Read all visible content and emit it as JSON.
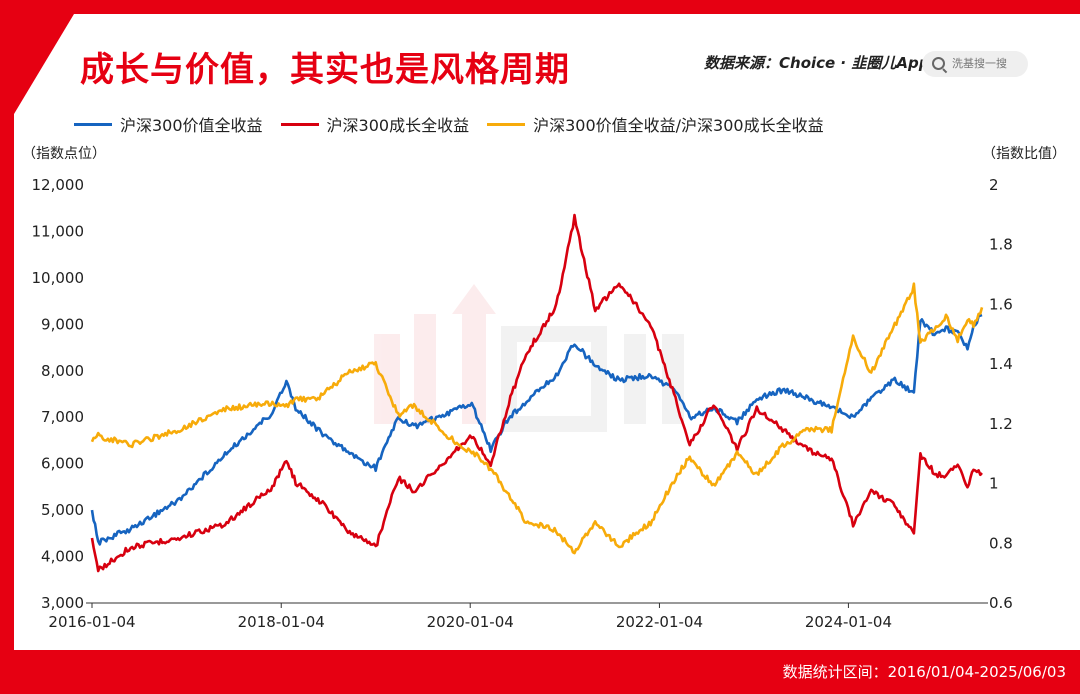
{
  "header": {
    "title": "成长与价值，其实也是风格周期",
    "source": "数据来源：Choice · 韭圈儿App",
    "search_placeholder": "洗基搜一搜"
  },
  "footer": {
    "range": "数据统计区间：2016/01/04-2025/06/03"
  },
  "watermark_icon": "jiuquaner-logo-watermark",
  "colors": {
    "value": "#1664c0",
    "growth": "#d7000f",
    "ratio": "#f7ab0a",
    "brand": "#e60012"
  },
  "chart_data": {
    "type": "line",
    "title": "成长与价值，其实也是风格周期",
    "y_left_unit": "（指数点位）",
    "y_right_unit": "（指数比值）",
    "y_left_ticks": [
      "3,000",
      "4,000",
      "5,000",
      "6,000",
      "7,000",
      "8,000",
      "9,000",
      "10,000",
      "11,000",
      "12,000"
    ],
    "y_right_ticks": [
      "0.6",
      "0.8",
      "1",
      "1.2",
      "1.4",
      "1.6",
      "1.8",
      "2"
    ],
    "x_ticks": [
      "2016-01-04",
      "2018-01-04",
      "2020-01-04",
      "2022-01-04",
      "2024-01-04"
    ],
    "ylim_left": [
      3000,
      12000
    ],
    "ylim_right": [
      0.6,
      2.0
    ],
    "xlim": [
      "2016-01-04",
      "2025-06-03"
    ],
    "legend_position": "top-left",
    "grid": false,
    "series": [
      {
        "name": "沪深300价值全收益",
        "axis": "left",
        "color": "#1664c0",
        "x": [
          "2016-01-04",
          "2016-01-28",
          "2016-06-01",
          "2016-12-01",
          "2017-06-01",
          "2017-12-01",
          "2018-01-24",
          "2018-03-01",
          "2018-06-01",
          "2018-10-01",
          "2019-01-04",
          "2019-04-01",
          "2019-06-01",
          "2019-09-01",
          "2019-12-01",
          "2020-01-10",
          "2020-03-23",
          "2020-06-01",
          "2020-08-01",
          "2020-12-01",
          "2021-02-10",
          "2021-05-01",
          "2021-08-01",
          "2021-12-01",
          "2022-03-01",
          "2022-05-01",
          "2022-08-01",
          "2022-10-31",
          "2023-01-15",
          "2023-05-01",
          "2023-08-01",
          "2023-10-31",
          "2024-01-22",
          "2024-04-01",
          "2024-07-01",
          "2024-09-13",
          "2024-10-08",
          "2024-12-01",
          "2025-01-15",
          "2025-03-01",
          "2025-04-08",
          "2025-05-01",
          "2025-06-03"
        ],
        "y": [
          5000,
          4300,
          4600,
          5200,
          6200,
          7100,
          7800,
          7200,
          6700,
          6200,
          5900,
          7000,
          6800,
          7000,
          7200,
          7300,
          6300,
          7000,
          7300,
          7900,
          8600,
          8100,
          7800,
          7900,
          7600,
          7000,
          7200,
          6900,
          7400,
          7600,
          7400,
          7200,
          7000,
          7400,
          7800,
          7500,
          9100,
          8800,
          8900,
          8800,
          8500,
          9000,
          9200
        ]
      },
      {
        "name": "沪深300成长全收益",
        "axis": "left",
        "color": "#d7000f",
        "x": [
          "2016-01-04",
          "2016-01-28",
          "2016-06-01",
          "2016-12-01",
          "2017-06-01",
          "2017-12-01",
          "2018-01-24",
          "2018-03-01",
          "2018-06-01",
          "2018-10-01",
          "2019-01-04",
          "2019-04-01",
          "2019-06-01",
          "2019-09-01",
          "2019-12-01",
          "2020-01-10",
          "2020-03-23",
          "2020-06-01",
          "2020-08-01",
          "2020-12-01",
          "2021-02-10",
          "2021-05-01",
          "2021-08-01",
          "2021-12-01",
          "2022-03-01",
          "2022-05-01",
          "2022-08-01",
          "2022-10-31",
          "2023-01-15",
          "2023-05-01",
          "2023-08-01",
          "2023-10-31",
          "2024-01-22",
          "2024-04-01",
          "2024-07-01",
          "2024-09-13",
          "2024-10-08",
          "2024-12-01",
          "2025-01-15",
          "2025-03-01",
          "2025-04-08",
          "2025-05-01",
          "2025-06-03"
        ],
        "y": [
          4400,
          3700,
          4200,
          4400,
          4700,
          5500,
          6100,
          5600,
          5200,
          4500,
          4200,
          5700,
          5400,
          5900,
          6400,
          6600,
          6000,
          7300,
          8300,
          9400,
          11300,
          9300,
          9900,
          9000,
          7500,
          6400,
          7300,
          6300,
          7200,
          6700,
          6300,
          6100,
          4700,
          5400,
          5100,
          4500,
          6200,
          5800,
          5700,
          6000,
          5500,
          5900,
          5800
        ]
      },
      {
        "name": "沪深300价值全收益/沪深300成长全收益",
        "axis": "right",
        "color": "#f7ab0a",
        "x": [
          "2016-01-04",
          "2016-01-28",
          "2016-06-01",
          "2016-12-01",
          "2017-06-01",
          "2017-12-01",
          "2018-01-24",
          "2018-03-01",
          "2018-06-01",
          "2018-10-01",
          "2019-01-04",
          "2019-04-01",
          "2019-06-01",
          "2019-09-01",
          "2019-12-01",
          "2020-01-10",
          "2020-03-23",
          "2020-06-01",
          "2020-08-01",
          "2020-12-01",
          "2021-02-10",
          "2021-05-01",
          "2021-08-01",
          "2021-12-01",
          "2022-03-01",
          "2022-05-01",
          "2022-08-01",
          "2022-10-31",
          "2023-01-15",
          "2023-05-01",
          "2023-08-01",
          "2023-10-31",
          "2024-01-22",
          "2024-04-01",
          "2024-07-01",
          "2024-09-13",
          "2024-10-08",
          "2024-12-01",
          "2025-01-15",
          "2025-03-01",
          "2025-04-08",
          "2025-05-01",
          "2025-06-03"
        ],
        "y": [
          1.14,
          1.16,
          1.13,
          1.18,
          1.25,
          1.27,
          1.26,
          1.28,
          1.29,
          1.38,
          1.4,
          1.23,
          1.26,
          1.19,
          1.12,
          1.11,
          1.05,
          0.96,
          0.88,
          0.84,
          0.77,
          0.87,
          0.79,
          0.87,
          1.01,
          1.09,
          0.99,
          1.1,
          1.03,
          1.13,
          1.18,
          1.18,
          1.49,
          1.37,
          1.53,
          1.66,
          1.47,
          1.52,
          1.56,
          1.48,
          1.55,
          1.53,
          1.59
        ]
      }
    ]
  }
}
